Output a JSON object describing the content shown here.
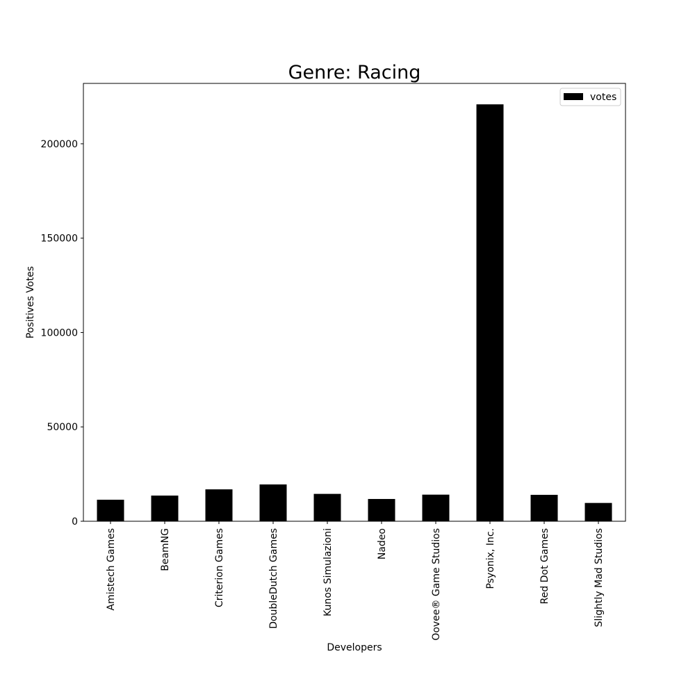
{
  "chart_data": {
    "type": "bar",
    "title": "Genre: Racing",
    "xlabel": "Developers",
    "ylabel": "Positives Votes",
    "categories": [
      "Amistech Games",
      "BeamNG",
      "Criterion Games",
      "DoubleDutch Games",
      "Kunos Simulazioni",
      "Nadeo",
      "Oovee® Game Studios",
      "Psyonix, Inc.",
      "Red Dot Games",
      "Slightly Mad Studios"
    ],
    "series": [
      {
        "name": "votes",
        "color": "#000000",
        "values": [
          11400,
          13600,
          16900,
          19500,
          14500,
          11800,
          14100,
          220900,
          14000,
          9700
        ]
      }
    ],
    "ylim": [
      0,
      232000
    ],
    "yticks": [
      0,
      50000,
      100000,
      150000,
      200000
    ],
    "grid": false,
    "legend_position": "top-right"
  }
}
